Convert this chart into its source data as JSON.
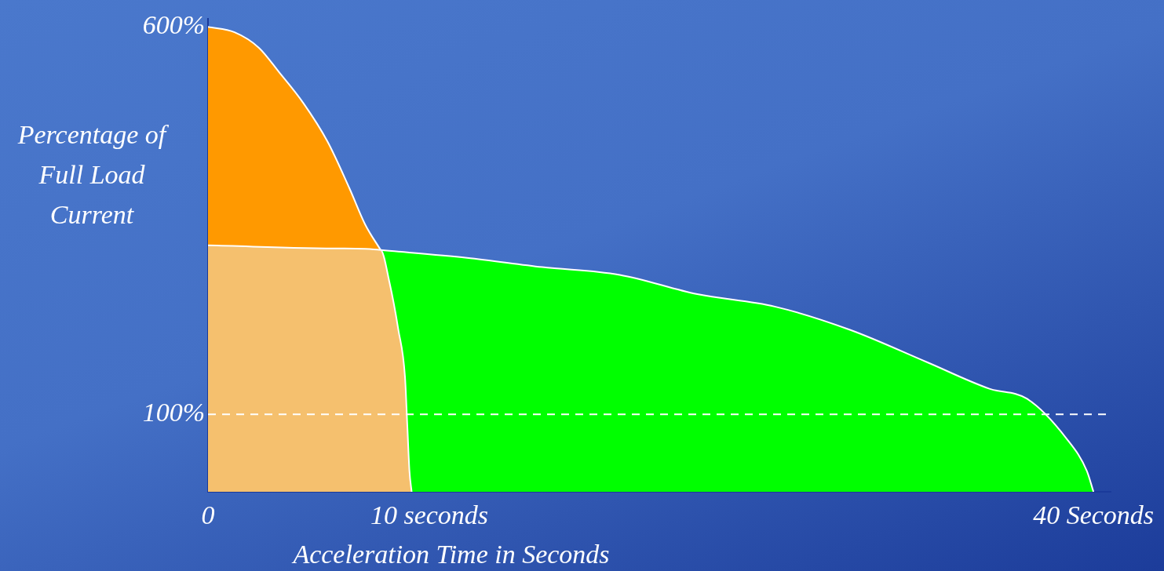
{
  "chart_data": {
    "type": "area",
    "xlabel": "Acceleration Time in Seconds",
    "ylabel": "Percentage of Full Load Current",
    "xlim": [
      0,
      40.8
    ],
    "ylim": [
      0,
      610
    ],
    "xticks": [
      {
        "value": 0,
        "label": "0"
      },
      {
        "value": 10,
        "label": "10 seconds"
      },
      {
        "value": 40,
        "label": "40 Seconds"
      }
    ],
    "yticks": [
      {
        "value": 100,
        "label": "100%"
      },
      {
        "value": 600,
        "label": "600%"
      }
    ],
    "grid": false,
    "legend": false,
    "marker": "none",
    "series": [
      {
        "color": "#ff9900",
        "x": [
          0,
          1.2,
          2.3,
          3.2,
          4.3,
          5.4,
          6.4,
          7.1,
          7.8
        ],
        "values": [
          600,
          593,
          573,
          542,
          502,
          452,
          391,
          345,
          312
        ]
      },
      {
        "color": "#00ff00",
        "x": [
          7.8,
          11.7,
          15.1,
          18.6,
          22.1,
          25.6,
          29.0,
          32.5,
          35.3,
          37.0,
          38.8,
          39.7,
          40
        ],
        "values": [
          312,
          302,
          290,
          280,
          255,
          239,
          209,
          167,
          133,
          120,
          68,
          27,
          0
        ]
      },
      {
        "color": "#f5c06e",
        "x": [
          0,
          6.1,
          7.8,
          8.2,
          8.6,
          8.9,
          9.0,
          9.1,
          9.2
        ],
        "values": [
          318,
          314,
          312,
          270,
          209,
          148,
          88,
          27,
          0
        ]
      }
    ],
    "ref_lines": [
      {
        "axis": "y",
        "value": 100,
        "color": "#ffffff",
        "line_style": "dashed"
      }
    ]
  }
}
